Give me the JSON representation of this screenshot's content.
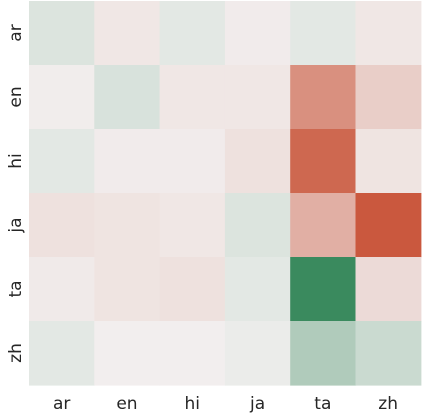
{
  "chart_data": {
    "type": "heatmap",
    "title": "",
    "xlabel": "",
    "ylabel": "",
    "x_categories": [
      "ar",
      "en",
      "hi",
      "ja",
      "ta",
      "zh"
    ],
    "y_categories": [
      "ar",
      "en",
      "hi",
      "ja",
      "ta",
      "zh"
    ],
    "value_range": [
      -1,
      1
    ],
    "colormap": {
      "negative": "#3a8a5e",
      "neutral": "#f2f0f0",
      "positive": "#c9553a"
    },
    "values": [
      [
        -0.12,
        0.06,
        -0.08,
        0.03,
        -0.08,
        0.06
      ],
      [
        0.02,
        -0.14,
        0.06,
        0.06,
        0.62,
        0.22
      ],
      [
        -0.08,
        0.03,
        0.03,
        0.1,
        0.88,
        0.08
      ],
      [
        0.1,
        0.08,
        0.06,
        -0.12,
        0.42,
        0.98
      ],
      [
        0.04,
        0.08,
        0.1,
        -0.08,
        -1.0,
        0.14
      ],
      [
        -0.08,
        0.01,
        0.01,
        -0.04,
        -0.36,
        -0.22
      ]
    ],
    "colorbar": false,
    "grid": false
  }
}
